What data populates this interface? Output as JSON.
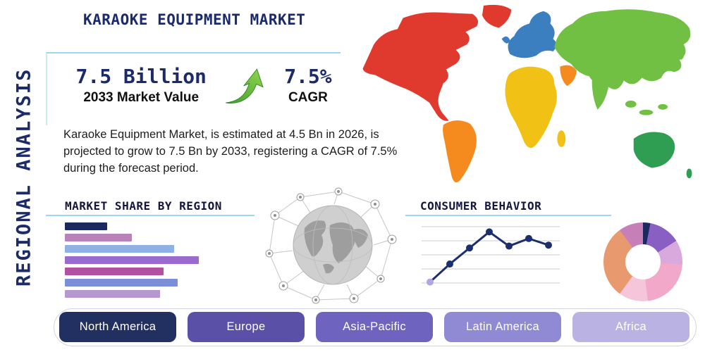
{
  "page": {
    "title": "KARAOKE EQUIPMENT MARKET",
    "vertical_label": "REGIONAL ANALYSIS"
  },
  "stats": {
    "market_value": "7.5 Billion",
    "market_value_caption": "2033 Market Value",
    "cagr_value": "7.5%",
    "cagr_caption": "CAGR",
    "description": "Karaoke Equipment Market, is estimated at 4.5 Bn in 2026, is projected to grow to 7.5 Bn by 2033, registering a CAGR of 7.5% during the forecast period."
  },
  "sections": {
    "market_share_heading": "MARKET SHARE BY REGION",
    "consumer_behavior_heading": "CONSUMER BEHAVIOR"
  },
  "colors": {
    "accent_navy": "#1b2a68",
    "underline_blue": "#9fd8ec",
    "arrow_green": "#5cb93c"
  },
  "chart_data": [
    {
      "type": "bar",
      "title": "MARKET SHARE BY REGION",
      "orientation": "horizontal",
      "values": [
        60,
        95,
        155,
        190,
        140,
        160,
        135
      ],
      "colors": [
        "#1b2a5e",
        "#b783b8",
        "#8fb1e3",
        "#9a6bcf",
        "#b2519f",
        "#7b8ed8",
        "#b598cf"
      ]
    },
    {
      "type": "line",
      "title": "CONSUMER BEHAVIOR",
      "x": [
        1,
        2,
        3,
        4,
        5,
        6,
        7
      ],
      "values": [
        1.0,
        2.9,
        4.6,
        6.3,
        4.8,
        5.6,
        4.9
      ],
      "ylim": [
        0,
        7
      ],
      "grid": true,
      "line_color": "#1b2f6e",
      "first_point_color": "#b3a5e3"
    },
    {
      "type": "pie",
      "donut": true,
      "values": [
        3,
        13,
        10,
        22,
        12,
        30,
        10
      ],
      "colors": [
        "#1b2a5e",
        "#8a5fc4",
        "#d9a8dc",
        "#f2a8c8",
        "#f5c6da",
        "#e8996e",
        "#c77fb8"
      ]
    }
  ],
  "regions": [
    {
      "label": "North America",
      "color": "#223061"
    },
    {
      "label": "Europe",
      "color": "#5a50a8"
    },
    {
      "label": "Asia-Pacific",
      "color": "#6e64c0"
    },
    {
      "label": "Latin America",
      "color": "#9089d4"
    },
    {
      "label": "Africa",
      "color": "#b9b2e2"
    }
  ],
  "world_map": {
    "continents": [
      {
        "name": "north-america",
        "color": "#e03a2f"
      },
      {
        "name": "greenland",
        "color": "#e03a2f"
      },
      {
        "name": "south-america",
        "color": "#f58a1f"
      },
      {
        "name": "europe",
        "color": "#3c7fc0"
      },
      {
        "name": "uk",
        "color": "#3c7fc0"
      },
      {
        "name": "africa",
        "color": "#f2c115"
      },
      {
        "name": "middle-east",
        "color": "#f58a1f"
      },
      {
        "name": "asia",
        "color": "#72c043"
      },
      {
        "name": "australia",
        "color": "#2f9e52"
      }
    ]
  }
}
